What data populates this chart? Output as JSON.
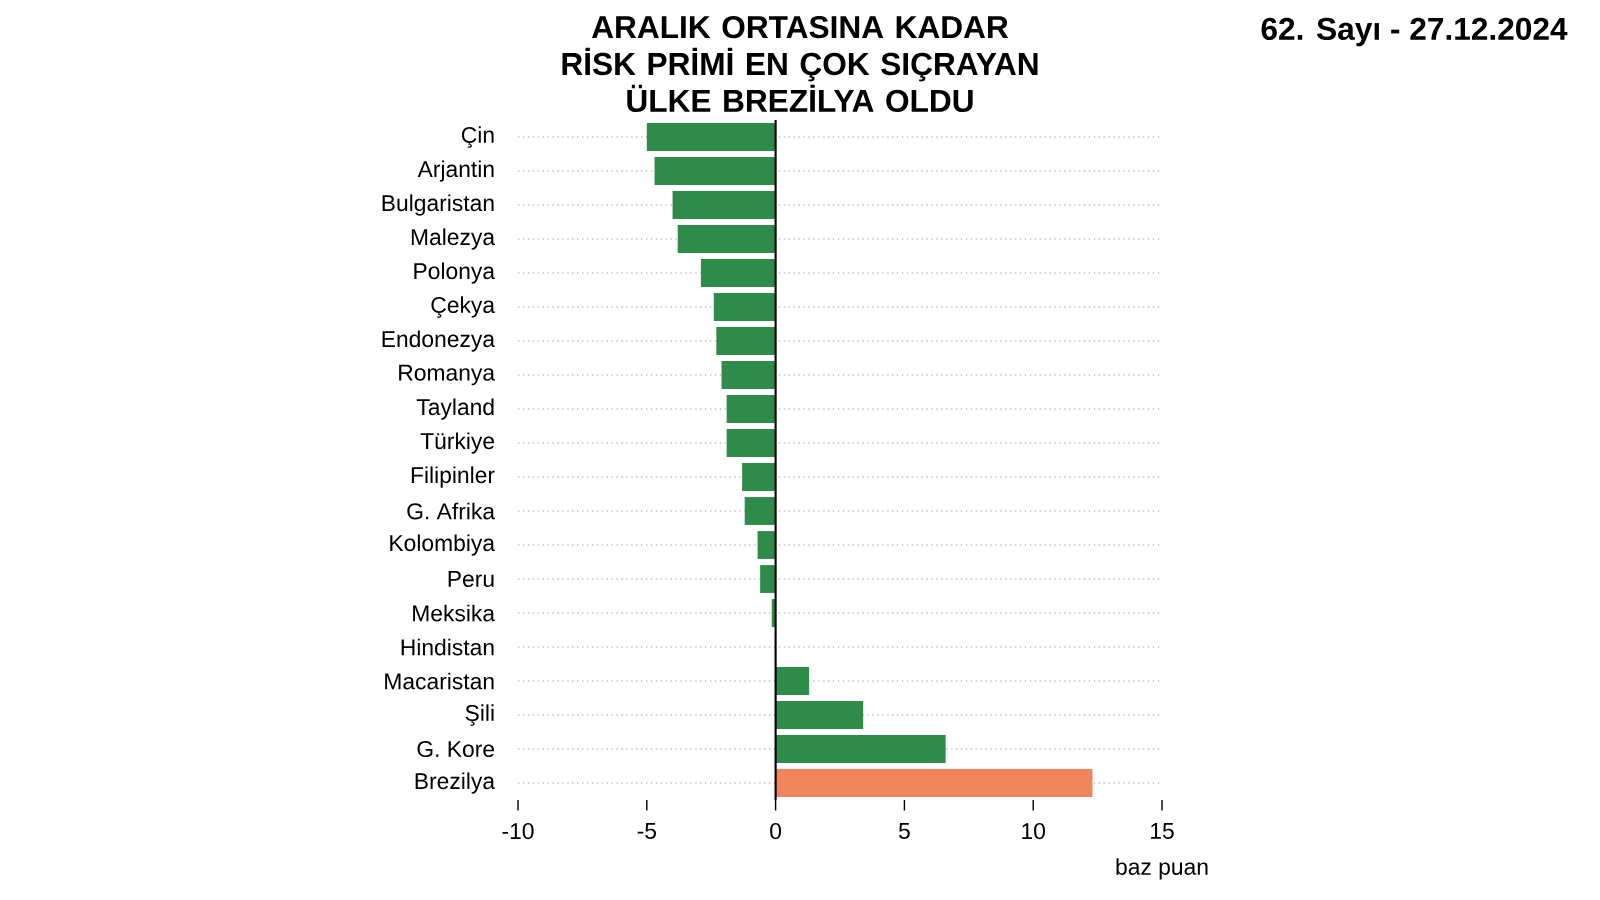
{
  "chart_data": {
    "type": "bar",
    "orientation": "horizontal",
    "title": "ARALIK ORTASINA KADAR RİSK PRİMİ EN ÇOK SIÇRAYAN ÜLKE BREZİLYA OLDU",
    "annotations": [
      "62. Sayı - 27.12.2024"
    ],
    "xlabel": "baz puan",
    "categories": [
      "Çin",
      "Arjantin",
      "Bulgaristan",
      "Malezya",
      "Polonya",
      "Çekya",
      "Endonezya",
      "Romanya",
      "Tayland",
      "Türkiye",
      "Filipinler",
      "G. Afrika",
      "Kolombiya",
      "Peru",
      "Meksika",
      "Hindistan",
      "Macaristan",
      "Şili",
      "G. Kore",
      "Brezilya"
    ],
    "values": [
      -5.0,
      -4.7,
      -4.0,
      -3.8,
      -2.9,
      -2.4,
      -2.3,
      -2.1,
      -1.9,
      -1.9,
      -1.3,
      -1.2,
      -0.7,
      -0.6,
      -0.15,
      0,
      1.3,
      3.4,
      6.6,
      12.3
    ],
    "colors": [
      "#2e8b4a",
      "#2e8b4a",
      "#2e8b4a",
      "#2e8b4a",
      "#2e8b4a",
      "#2e8b4a",
      "#2e8b4a",
      "#2e8b4a",
      "#2e8b4a",
      "#2e8b4a",
      "#2e8b4a",
      "#2e8b4a",
      "#2e8b4a",
      "#2e8b4a",
      "#2e8b4a",
      "#2e8b4a",
      "#2e8b4a",
      "#2e8b4a",
      "#2e8b4a",
      "#f0845a"
    ],
    "xlim": [
      -10,
      15
    ],
    "xticks": [
      -10,
      -5,
      0,
      5,
      10,
      15
    ],
    "grid": "y"
  }
}
